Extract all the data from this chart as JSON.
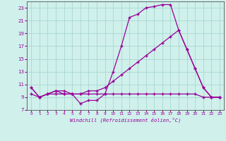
{
  "background_color": "#cff0eb",
  "grid_color": "#a8d8d0",
  "line_color": "#990099",
  "spine_color": "#555555",
  "xlabel": "Windchill (Refroidissement éolien,°C)",
  "xlim": [
    -0.5,
    23.5
  ],
  "ylim": [
    7,
    24
  ],
  "yticks": [
    7,
    9,
    11,
    13,
    15,
    17,
    19,
    21,
    23
  ],
  "xticks": [
    0,
    1,
    2,
    3,
    4,
    5,
    6,
    7,
    8,
    9,
    10,
    11,
    12,
    13,
    14,
    15,
    16,
    17,
    18,
    19,
    20,
    21,
    22,
    23
  ],
  "series1_x": [
    0,
    1,
    2,
    3,
    4,
    5,
    6,
    7,
    8,
    9,
    10,
    11,
    12,
    13,
    14,
    15,
    16,
    17,
    18,
    19,
    20,
    21,
    22,
    23
  ],
  "series1_y": [
    10.5,
    9.0,
    9.5,
    10.0,
    9.5,
    9.5,
    8.0,
    8.5,
    8.5,
    9.5,
    13.0,
    17.0,
    21.5,
    22.0,
    23.0,
    23.2,
    23.5,
    23.5,
    19.5,
    16.5,
    13.5,
    10.5,
    9.0,
    9.0
  ],
  "series2_x": [
    0,
    1,
    2,
    3,
    4,
    5,
    6,
    7,
    8,
    9,
    10,
    11,
    12,
    13,
    14,
    15,
    16,
    17,
    18,
    19,
    20,
    21,
    22,
    23
  ],
  "series2_y": [
    9.5,
    9.0,
    9.5,
    9.5,
    9.5,
    9.5,
    9.5,
    9.5,
    9.5,
    9.5,
    9.5,
    9.5,
    9.5,
    9.5,
    9.5,
    9.5,
    9.5,
    9.5,
    9.5,
    9.5,
    9.5,
    9.0,
    9.0,
    9.0
  ],
  "series3_x": [
    0,
    1,
    2,
    3,
    4,
    5,
    6,
    7,
    8,
    9,
    10,
    11,
    12,
    13,
    14,
    15,
    16,
    17,
    18,
    19,
    20,
    21,
    22,
    23
  ],
  "series3_y": [
    10.5,
    9.0,
    9.5,
    10.0,
    10.0,
    9.5,
    9.5,
    10.0,
    10.0,
    10.5,
    11.5,
    12.5,
    13.5,
    14.5,
    15.5,
    16.5,
    17.5,
    18.5,
    19.5,
    16.5,
    13.5,
    10.5,
    9.0,
    9.0
  ]
}
